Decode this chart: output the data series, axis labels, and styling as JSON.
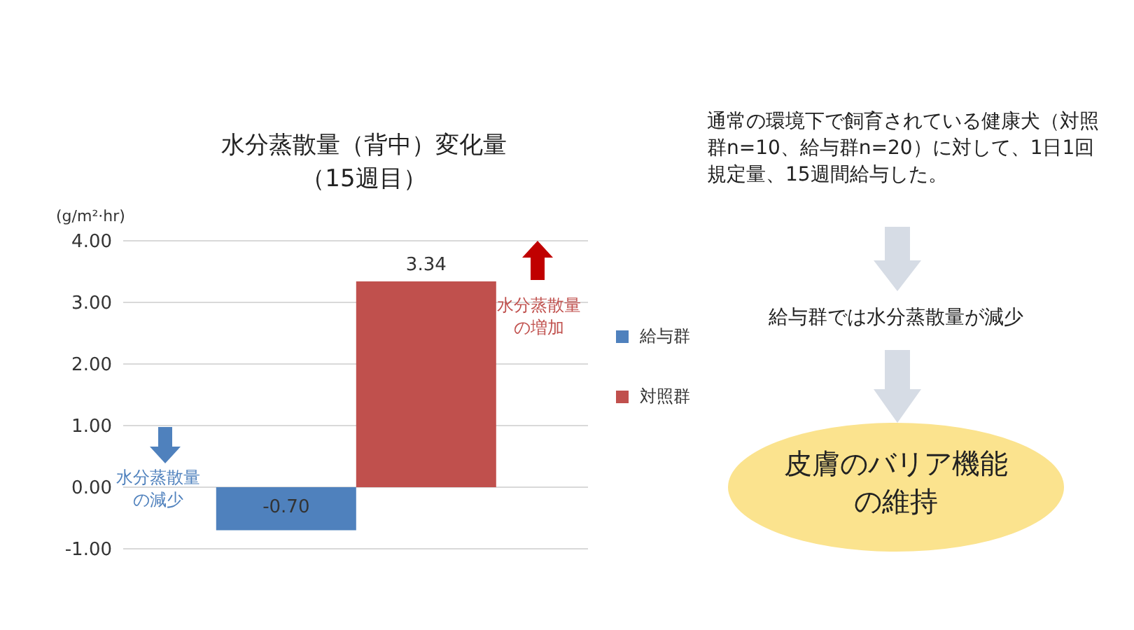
{
  "chart_data": {
    "type": "bar",
    "title": "水分蒸散量（背中）変化量",
    "subtitle": "（15週目）",
    "ylabel": "(g/m²·hr)",
    "categories": [
      null
    ],
    "series": [
      {
        "name": "給与群",
        "color": "#4f81bd",
        "values": [
          -0.7
        ],
        "value_labels": [
          "-0.70"
        ]
      },
      {
        "name": "対照群",
        "color": "#c0504d",
        "values": [
          3.34
        ],
        "value_labels": [
          "3.34"
        ]
      }
    ],
    "ylim": [
      -1,
      4
    ],
    "yticks": [
      {
        "value": -1,
        "label": "-1.00"
      },
      {
        "value": 0,
        "label": "0.00"
      },
      {
        "value": 1,
        "label": "1.00"
      },
      {
        "value": 2,
        "label": "2.00"
      },
      {
        "value": 3,
        "label": "3.00"
      },
      {
        "value": 4,
        "label": "4.00"
      }
    ],
    "grid": "y",
    "legend": "right",
    "annotations": [
      "水分蒸散量の増加",
      "水分蒸散量の減少",
      "通常の環境下で飼育されている健康犬（対照群n=10、給与群n=20）に対して、1日1回規定量、15週間給与した。",
      "給与群では水分蒸散量が減少",
      "皮膚のバリア機能の維持"
    ]
  }
}
